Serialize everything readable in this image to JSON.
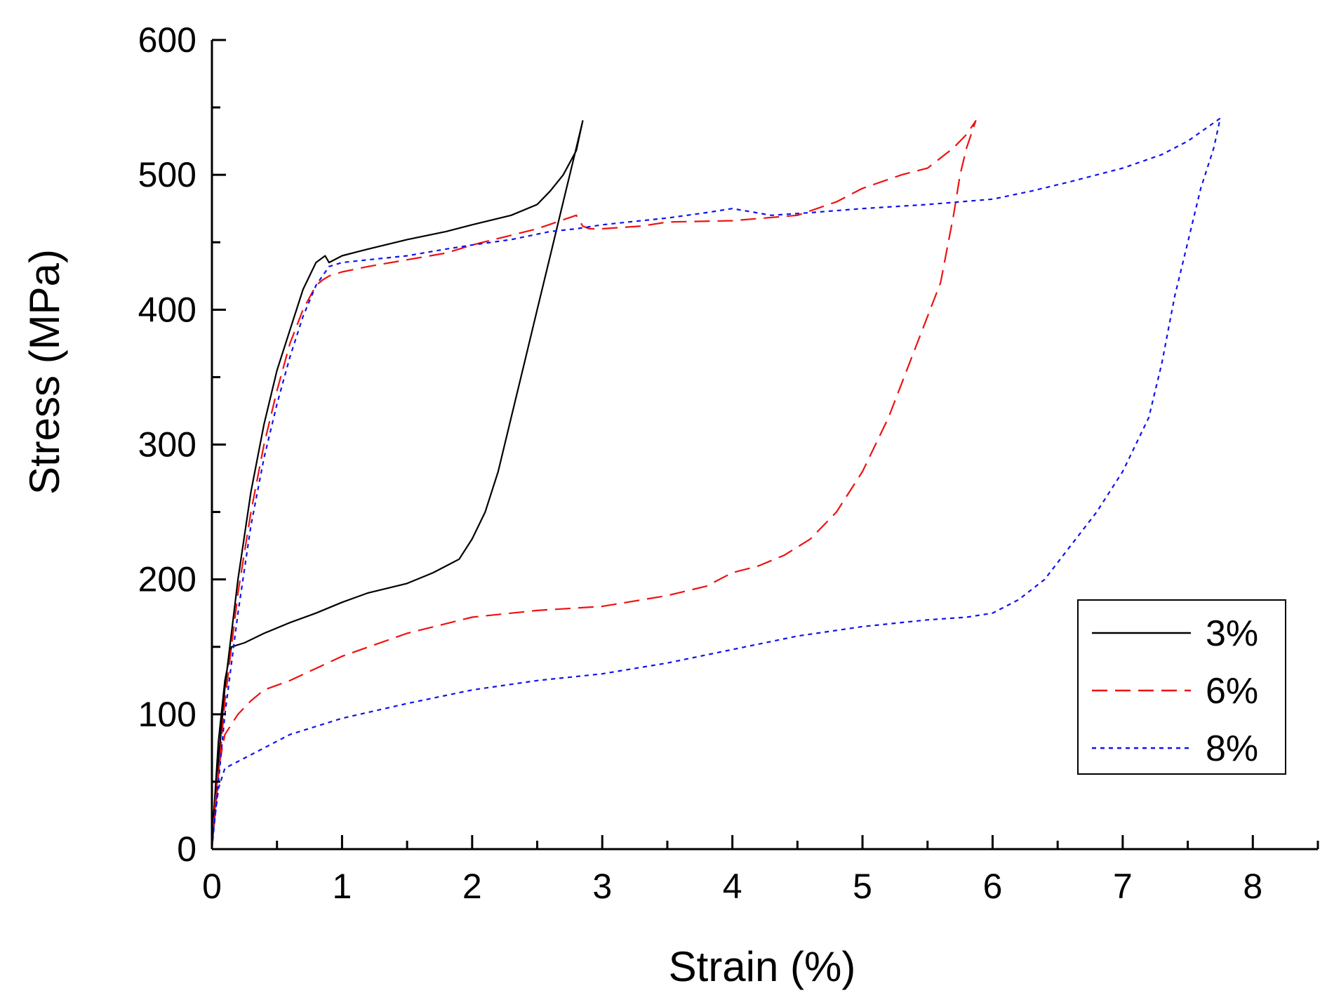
{
  "chart_data": {
    "type": "line",
    "title": "",
    "xlabel": "Strain (%)",
    "ylabel": "Stress (MPa)",
    "xlim": [
      0,
      8.5
    ],
    "ylim": [
      0,
      600
    ],
    "xticks": [
      0,
      1,
      2,
      3,
      4,
      5,
      6,
      7,
      8
    ],
    "yticks": [
      0,
      100,
      200,
      300,
      400,
      500,
      600
    ],
    "grid": false,
    "legend_position": "bottom-right",
    "series": [
      {
        "name": "3%",
        "color": "#000000",
        "dash": "solid",
        "x": [
          0,
          0.05,
          0.1,
          0.2,
          0.3,
          0.4,
          0.5,
          0.6,
          0.7,
          0.8,
          0.87,
          0.9,
          1.0,
          1.2,
          1.5,
          1.8,
          2.0,
          2.3,
          2.5,
          2.6,
          2.7,
          2.8,
          2.85,
          2.8,
          2.75,
          2.7,
          2.6,
          2.5,
          2.4,
          2.3,
          2.2,
          2.1,
          2.0,
          1.9,
          1.8,
          1.7,
          1.5,
          1.2,
          1.0,
          0.8,
          0.6,
          0.4,
          0.25,
          0.15,
          0.1,
          0.05,
          0
        ],
        "y": [
          0,
          65,
          120,
          200,
          265,
          315,
          355,
          385,
          415,
          435,
          440,
          435,
          440,
          445,
          452,
          458,
          463,
          470,
          478,
          488,
          500,
          518,
          540,
          520,
          500,
          480,
          440,
          400,
          360,
          320,
          280,
          250,
          230,
          215,
          210,
          205,
          197,
          190,
          183,
          175,
          168,
          160,
          153,
          150,
          125,
          80,
          5
        ]
      },
      {
        "name": "6%",
        "color": "#ee1111",
        "dash": "dashed",
        "x": [
          0,
          0.05,
          0.1,
          0.2,
          0.3,
          0.4,
          0.5,
          0.6,
          0.7,
          0.8,
          0.85,
          0.9,
          1.0,
          1.2,
          1.5,
          1.8,
          2.0,
          2.5,
          2.8,
          2.85,
          2.9,
          3.0,
          3.3,
          3.5,
          4.0,
          4.5,
          4.8,
          5.0,
          5.3,
          5.5,
          5.7,
          5.8,
          5.87,
          5.8,
          5.75,
          5.7,
          5.6,
          5.4,
          5.2,
          5.0,
          4.8,
          4.6,
          4.4,
          4.2,
          4.0,
          3.8,
          3.5,
          3.0,
          2.5,
          2.0,
          1.5,
          1.0,
          0.6,
          0.4,
          0.3,
          0.2,
          0.1,
          0.05,
          0
        ],
        "y": [
          0,
          55,
          110,
          190,
          250,
          300,
          340,
          375,
          400,
          418,
          422,
          425,
          428,
          432,
          437,
          442,
          448,
          460,
          470,
          462,
          460,
          460,
          462,
          465,
          466,
          470,
          480,
          490,
          500,
          505,
          520,
          530,
          540,
          520,
          500,
          470,
          420,
          370,
          320,
          280,
          250,
          230,
          218,
          210,
          205,
          195,
          188,
          180,
          177,
          172,
          160,
          143,
          125,
          118,
          110,
          100,
          85,
          60,
          5
        ]
      },
      {
        "name": "8%",
        "color": "#1111ee",
        "dash": "dotted",
        "x": [
          0,
          0.05,
          0.1,
          0.2,
          0.3,
          0.4,
          0.5,
          0.6,
          0.7,
          0.8,
          0.9,
          1.0,
          1.2,
          1.5,
          1.8,
          2.0,
          2.3,
          2.6,
          2.8,
          3.0,
          3.2,
          3.5,
          3.8,
          4.0,
          4.3,
          4.6,
          5.0,
          5.5,
          6.0,
          6.3,
          6.6,
          7.0,
          7.3,
          7.5,
          7.75,
          7.7,
          7.6,
          7.5,
          7.4,
          7.3,
          7.2,
          7.0,
          6.8,
          6.6,
          6.4,
          6.2,
          6.0,
          5.8,
          5.5,
          5.0,
          4.5,
          4.0,
          3.5,
          3.0,
          2.5,
          2.0,
          1.5,
          1.0,
          0.6,
          0.4,
          0.2,
          0.1,
          0.05,
          0
        ],
        "y": [
          0,
          50,
          100,
          175,
          240,
          290,
          330,
          365,
          395,
          418,
          432,
          435,
          437,
          440,
          445,
          448,
          452,
          458,
          460,
          463,
          465,
          468,
          472,
          475,
          470,
          472,
          475,
          478,
          482,
          488,
          495,
          505,
          515,
          525,
          542,
          520,
          490,
          450,
          410,
          360,
          320,
          280,
          250,
          225,
          200,
          185,
          175,
          172,
          170,
          165,
          158,
          148,
          138,
          130,
          125,
          118,
          108,
          97,
          85,
          75,
          65,
          60,
          45,
          5
        ]
      }
    ]
  }
}
